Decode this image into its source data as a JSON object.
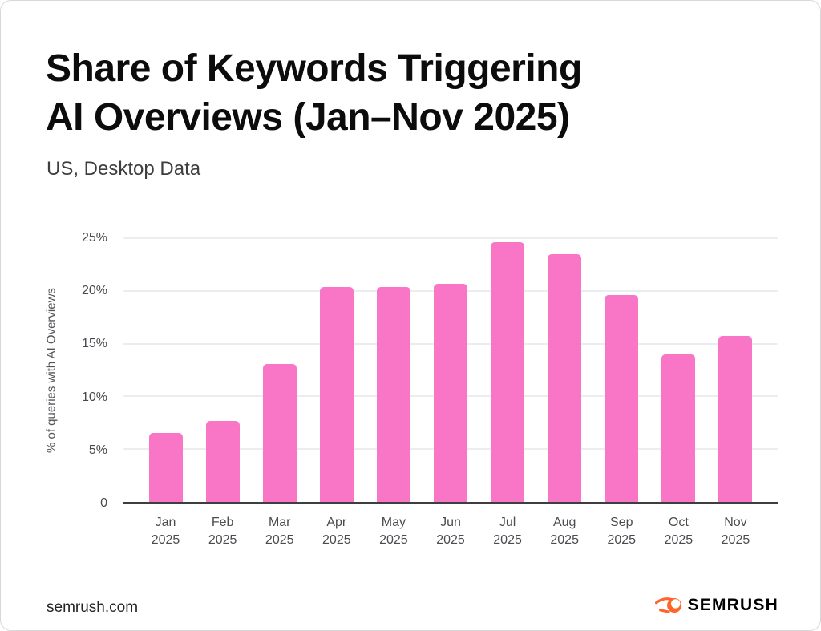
{
  "header": {
    "title_line1": "Share of Keywords Triggering",
    "title_line2": "AI Overviews (Jan–Nov 2025)",
    "subtitle": "US, Desktop Data"
  },
  "chart_data": {
    "type": "bar",
    "title": "Share of Keywords Triggering AI Overviews (Jan–Nov 2025)",
    "subtitle": "US, Desktop Data",
    "categories": [
      "Jan 2025",
      "Feb 2025",
      "Mar 2025",
      "Apr 2025",
      "May 2025",
      "Jun 2025",
      "Jul 2025",
      "Aug 2025",
      "Sep 2025",
      "Oct 2025",
      "Nov 2025"
    ],
    "values": [
      6.5,
      7.7,
      13.1,
      20.4,
      20.4,
      20.7,
      24.6,
      23.5,
      19.6,
      14.0,
      15.7
    ],
    "xlabel": "",
    "ylabel": "% of queries with AI Overviews",
    "ylim": [
      0,
      25
    ],
    "yticks": [
      {
        "value": 0,
        "label": "0"
      },
      {
        "value": 5,
        "label": "5%"
      },
      {
        "value": 10,
        "label": "10%"
      },
      {
        "value": 15,
        "label": "15%"
      },
      {
        "value": 20,
        "label": "20%"
      },
      {
        "value": 25,
        "label": "25%"
      }
    ],
    "grid": true,
    "legend": false,
    "bar_color": "#F976C7"
  },
  "footer": {
    "source": "semrush.com",
    "logo_text": "SEMRUSH",
    "logo_icon": "semrush-flame-icon",
    "logo_orange": "#FF642D"
  }
}
